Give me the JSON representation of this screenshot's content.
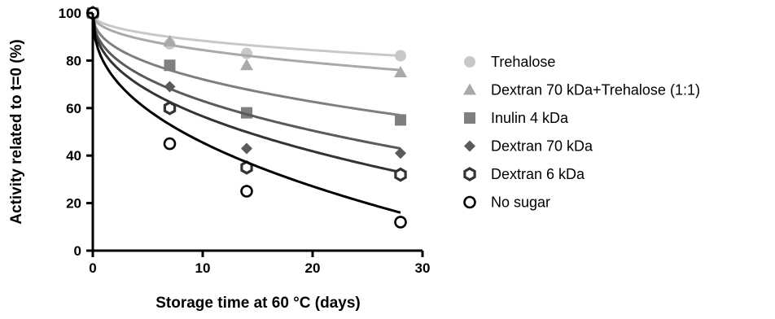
{
  "chart_data": {
    "type": "scatter",
    "title": "",
    "xlabel": "Storage time at 60 °C (days)",
    "ylabel": "Activity related to t=0 (%)",
    "xlim": [
      0,
      30
    ],
    "ylim": [
      0,
      100
    ],
    "xticks": [
      0,
      10,
      20,
      30
    ],
    "yticks": [
      0,
      20,
      40,
      60,
      80,
      100
    ],
    "grid": false,
    "legend_position": "right",
    "series": [
      {
        "name": "Trehalose",
        "marker": "circle-filled",
        "color": "#c8c8c8",
        "x": [
          0,
          7,
          14,
          28
        ],
        "y": [
          100,
          87,
          83,
          82
        ],
        "fit_end": 82
      },
      {
        "name": "Dextran 70 kDa+Trehalose (1:1)",
        "marker": "triangle",
        "color": "#a9a9a9",
        "x": [
          0,
          7,
          14,
          28
        ],
        "y": [
          100,
          88,
          78,
          75
        ],
        "fit_end": 76
      },
      {
        "name": "Inulin 4 kDa",
        "marker": "square",
        "color": "#7f7f7f",
        "x": [
          0,
          7,
          14,
          28
        ],
        "y": [
          100,
          78,
          58,
          55
        ],
        "fit_end": 57
      },
      {
        "name": "Dextran 70 kDa",
        "marker": "diamond",
        "color": "#5a5a5a",
        "x": [
          0,
          7,
          14,
          28
        ],
        "y": [
          100,
          69,
          43,
          41
        ],
        "fit_end": 43
      },
      {
        "name": "Dextran 6 kDa",
        "marker": "hexagon-open",
        "color": "#333333",
        "x": [
          0,
          7,
          14,
          28
        ],
        "y": [
          100,
          60,
          35,
          32
        ],
        "fit_end": 33
      },
      {
        "name": "No sugar",
        "marker": "circle-open",
        "color": "#000000",
        "x": [
          0,
          7,
          14,
          28
        ],
        "y": [
          100,
          45,
          25,
          12
        ],
        "fit_end": 16
      }
    ]
  }
}
